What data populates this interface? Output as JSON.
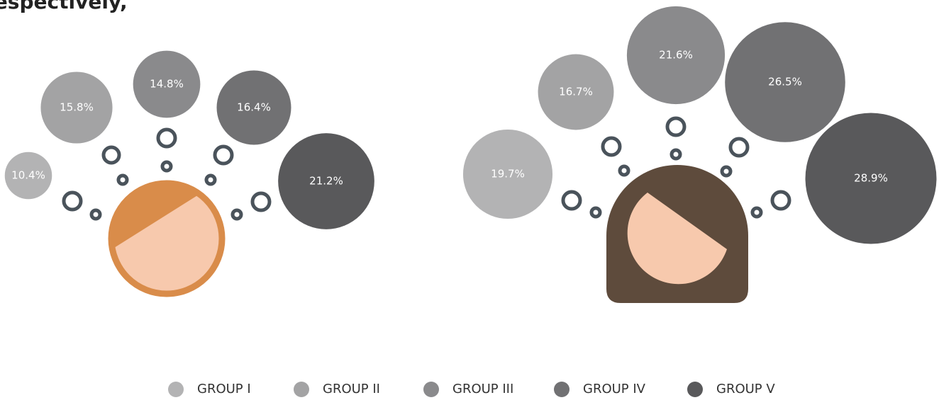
{
  "caption": "respectively,",
  "chart_data": {
    "type": "bubble",
    "categories": [
      "GROUP I",
      "GROUP II",
      "GROUP III",
      "GROUP IV",
      "GROUP V"
    ],
    "colors": [
      "#b3b3b4",
      "#a3a3a4",
      "#8a8a8c",
      "#717173",
      "#59595b"
    ],
    "panels": [
      {
        "values": [
          10.4,
          15.8,
          14.8,
          16.4,
          21.2
        ],
        "value_labels": [
          "10.4%",
          "15.8%",
          "14.8%",
          "16.4%",
          "21.2%"
        ]
      },
      {
        "values": [
          19.7,
          16.7,
          21.6,
          26.5,
          28.9
        ],
        "value_labels": [
          "19.7%",
          "16.7%",
          "21.6%",
          "26.5%",
          "28.9%"
        ]
      }
    ]
  }
}
